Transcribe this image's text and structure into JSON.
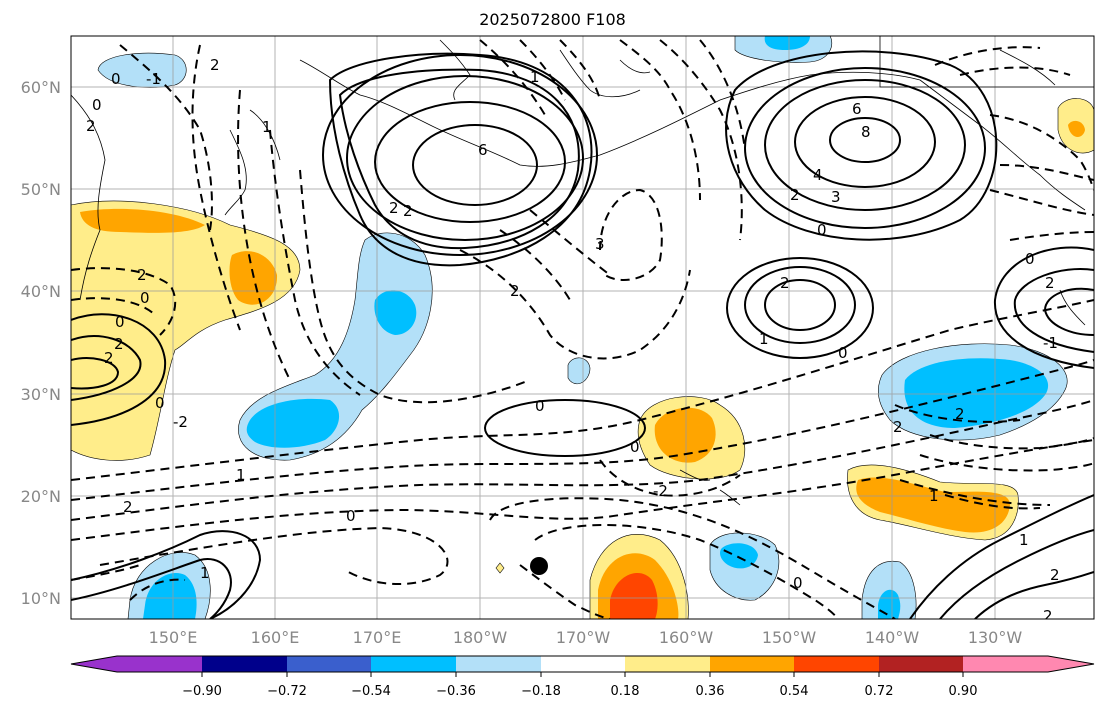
{
  "title": "2025072800 F108",
  "map": {
    "lon_labels": [
      "150°E",
      "160°E",
      "170°E",
      "180°W",
      "170°W",
      "160°W",
      "150°W",
      "140°W",
      "130°W"
    ],
    "lat_labels": [
      "60°N",
      "50°N",
      "40°N",
      "30°N",
      "20°N",
      "10°N"
    ],
    "contour_labels": [
      "0",
      "-1",
      "2",
      "2",
      "1",
      "0",
      "2",
      "0",
      "2",
      "0",
      "2",
      "0",
      "-2",
      "2",
      "2",
      "3",
      "6",
      "1",
      "2",
      "2",
      "1",
      "6",
      "8",
      "4",
      "3",
      "2",
      "0",
      "2",
      "1",
      "0",
      "2",
      "0",
      "-1",
      "0",
      "2",
      "1",
      "0",
      "-2",
      "2",
      "0",
      "1",
      "2",
      "1",
      "0",
      "2"
    ],
    "shading_colors": [
      "#ffed8a",
      "#ffa500",
      "#ff4500",
      "#b3e0f8",
      "#00bfff"
    ]
  },
  "colorbar": {
    "tick_labels": [
      "−0.90",
      "−0.72",
      "−0.54",
      "−0.36",
      "−0.18",
      "0.18",
      "0.36",
      "0.54",
      "0.72",
      "0.90"
    ],
    "colors": [
      "#9932cc",
      "#00008b",
      "#3a5fcd",
      "#00bfff",
      "#b3e0f8",
      "#ffffff",
      "#ffed8a",
      "#ffa500",
      "#ff4500",
      "#b22222",
      "#ff88b0"
    ]
  }
}
